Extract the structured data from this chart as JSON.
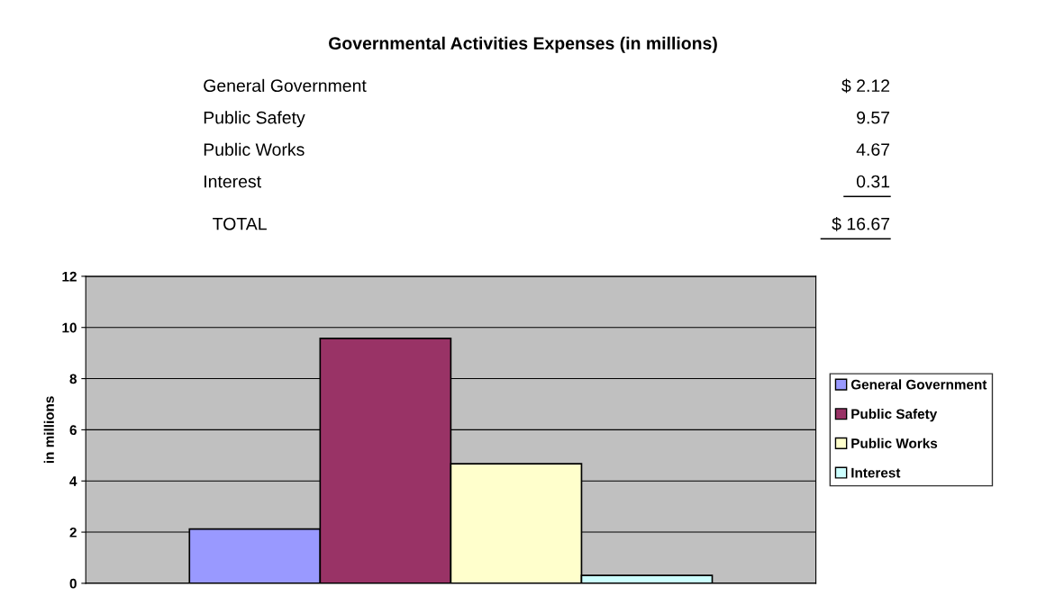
{
  "chart_data": {
    "type": "bar",
    "title": "Governmental Activities Expenses (in millions)",
    "ylabel": "in millions",
    "categories": [
      null
    ],
    "series": [
      {
        "name": "General Government",
        "color": "#9999ff",
        "values": [
          2.12
        ]
      },
      {
        "name": "Public Safety",
        "color": "#993366",
        "values": [
          9.57
        ]
      },
      {
        "name": "Public Works",
        "color": "#ffffcc",
        "values": [
          4.67
        ]
      },
      {
        "name": "Interest",
        "color": "#ccffff",
        "values": [
          0.31
        ]
      }
    ],
    "annotations": [
      "$ 2.12",
      "9.57",
      "4.67",
      "0.31",
      "TOTAL",
      "$ 16.67"
    ],
    "ylim": [
      0,
      12
    ],
    "yticks": [
      0,
      2,
      4,
      6,
      8,
      10,
      12
    ],
    "grid": "y",
    "legend": "right"
  }
}
